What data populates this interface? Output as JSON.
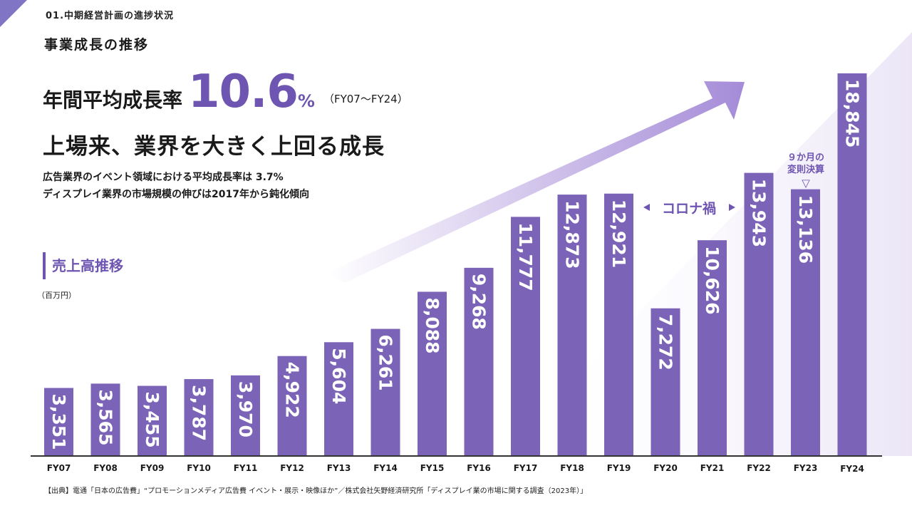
{
  "header": {
    "section": "01.中期経営計画の進捗状況",
    "subtitle": "事業成長の推移"
  },
  "growth": {
    "label": "年間平均成長率",
    "value": "10.6",
    "unit": "%",
    "period": "（FY07〜FY24）"
  },
  "headline": "上場来、業界を大きく上回る成長",
  "notes": {
    "line1": "広告業界のイベント領域における平均成長率は 3.7%",
    "line2": "ディスプレイ業界の市場規模の伸びは2017年から鈍化傾向"
  },
  "sales_title": "売上高推移",
  "unit_label": "（百万円）",
  "corona_label": "コロナ禍",
  "fy23_note": {
    "line1": "９か月の",
    "line2": "変則決算",
    "marker": "▽"
  },
  "source": "【出典】電通「日本の広告費」“プロモーションメディア広告費 イベント・展示・映像ほか”／株式会社矢野経済研究所「ディスプレイ業の市場に関する調査（2023年）」",
  "colors": {
    "bar": "#7b63b7",
    "accent": "#6e55b2",
    "arrow": "#a58bd8"
  },
  "chart_data": {
    "type": "bar",
    "title": "売上高推移",
    "ylabel": "（百万円）",
    "xlabel": "",
    "ylim": [
      0,
      19000
    ],
    "categories": [
      "FY07",
      "FY08",
      "FY09",
      "FY10",
      "FY11",
      "FY12",
      "FY13",
      "FY14",
      "FY15",
      "FY16",
      "FY17",
      "FY18",
      "FY19",
      "FY20",
      "FY21",
      "FY22",
      "FY23",
      "FY24"
    ],
    "values": [
      3351,
      3565,
      3455,
      3787,
      3970,
      4922,
      5604,
      6261,
      8088,
      9268,
      11777,
      12873,
      12921,
      7272,
      10626,
      13943,
      13136,
      18845
    ],
    "value_labels": [
      "3,351",
      "3,565",
      "3,455",
      "3,787",
      "3,970",
      "4,922",
      "5,604",
      "6,261",
      "8,088",
      "9,268",
      "11,777",
      "12,873",
      "12,921",
      "7,272",
      "10,626",
      "13,943",
      "13,136",
      "18,845"
    ]
  }
}
